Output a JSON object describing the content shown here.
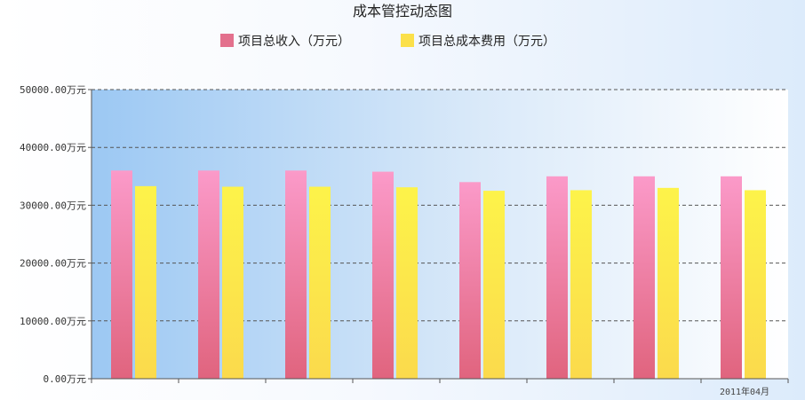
{
  "chart_data": {
    "type": "bar",
    "title": "成本管控动态图",
    "series": [
      {
        "name": "项目总收入（万元）",
        "color": "#e3708d",
        "values": [
          36000,
          36000,
          36000,
          35800,
          34000,
          35000,
          35000,
          35000
        ]
      },
      {
        "name": "项目总成本费用（万元）",
        "color": "#fbe04a",
        "values": [
          33300,
          33200,
          33200,
          33100,
          32500,
          32600,
          33000,
          32600
        ]
      }
    ],
    "categories": [
      "",
      "",
      "",
      "",
      "",
      "",
      "",
      "2011年04月"
    ],
    "ylim": [
      0,
      50000
    ],
    "yticks": [
      "0.00万元",
      "10000.00万元",
      "20000.00万元",
      "30000.00万元",
      "40000.00万元",
      "50000.00万元"
    ],
    "grid": true,
    "legend": "top"
  }
}
